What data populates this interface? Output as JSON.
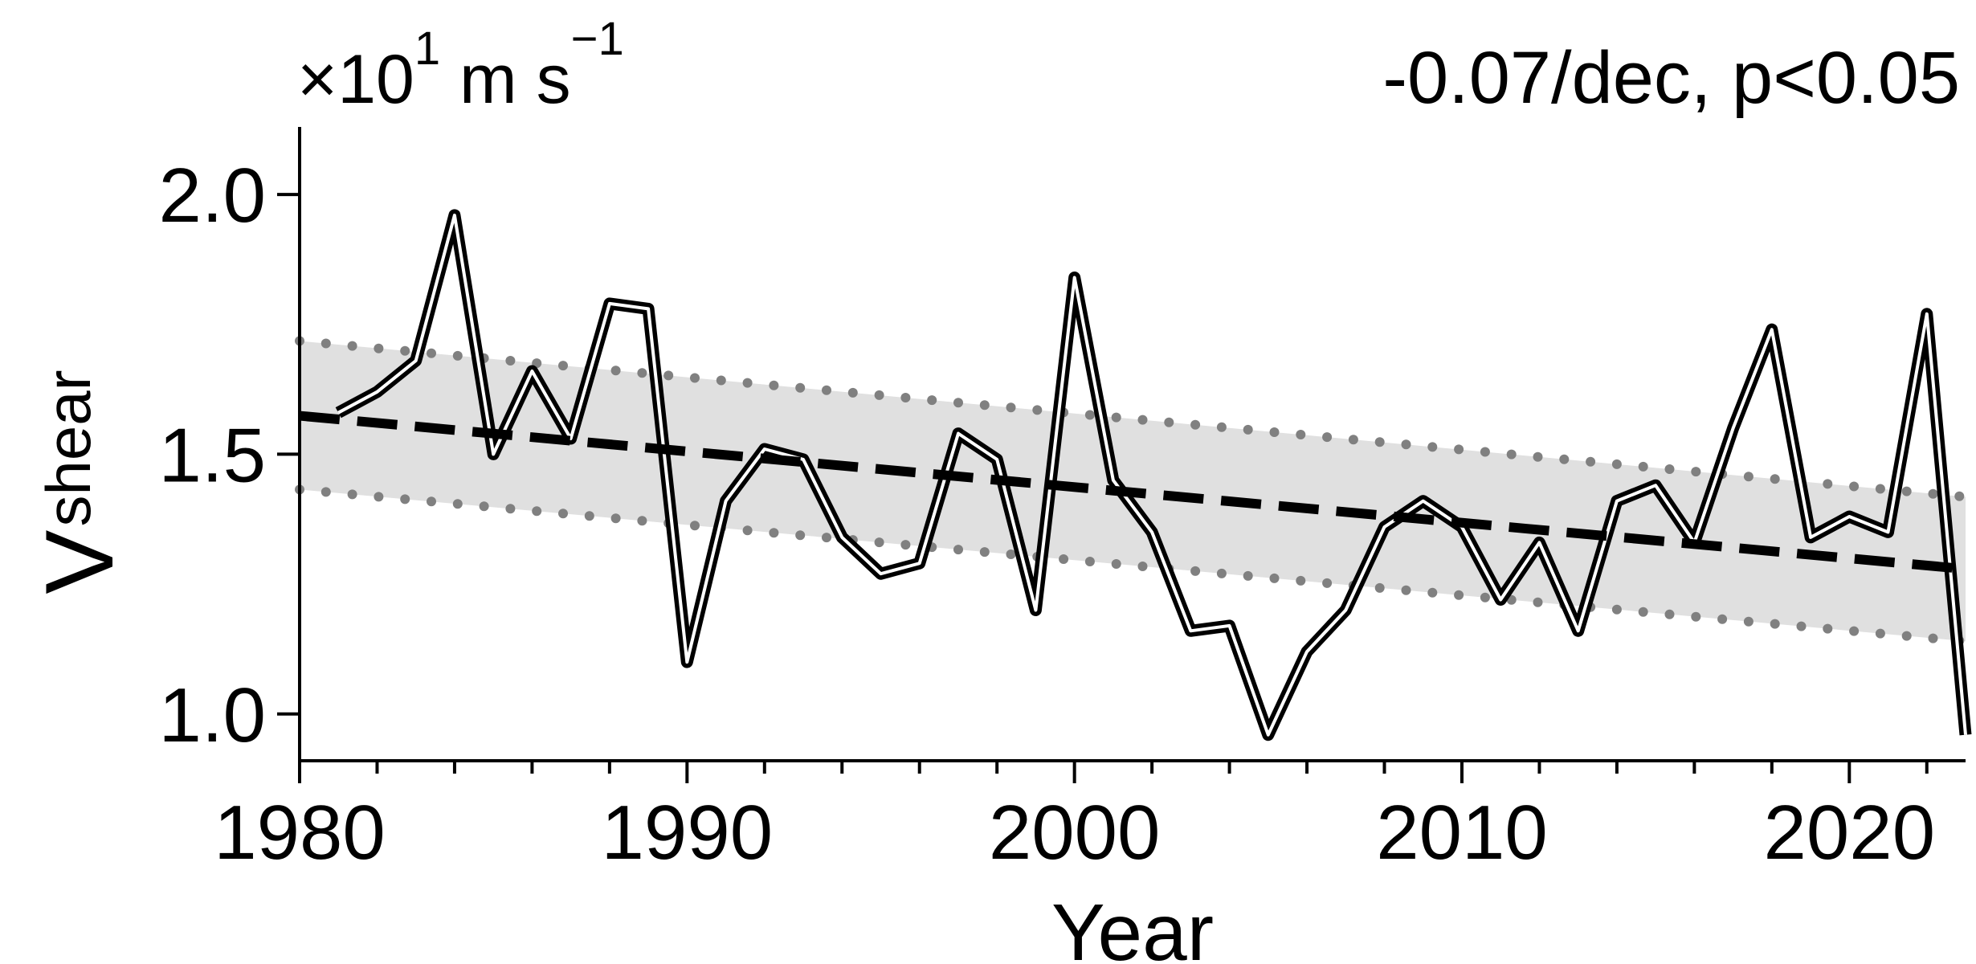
{
  "chart_data": {
    "type": "line",
    "title": "-0.07/dec, p<0.05",
    "units_prefix": "×10",
    "units_exp": "1",
    "units_main": " m s",
    "units_exp2": "−1",
    "ylabel_main": "V",
    "ylabel_sub": "shear",
    "xlabel": "Year",
    "xlim": [
      1980,
      2023
    ],
    "ylim": [
      0.91,
      2.13
    ],
    "xticks": [
      1980,
      1990,
      2000,
      2010,
      2020
    ],
    "xtick_labels": [
      "1980",
      "1990",
      "2000",
      "2010",
      "2020"
    ],
    "yticks": [
      1.0,
      1.5,
      2.0
    ],
    "ytick_labels": [
      "1.0",
      "1.5",
      "2.0"
    ],
    "grid": false,
    "legend": "none",
    "x": [
      1981,
      1982,
      1983,
      1984,
      1985,
      1986,
      1987,
      1988,
      1989,
      1990,
      1991,
      1992,
      1993,
      1994,
      1995,
      1996,
      1997,
      1998,
      1999,
      2000,
      2001,
      2002,
      2003,
      2004,
      2005,
      2006,
      2007,
      2008,
      2009,
      2010,
      2011,
      2012,
      2013,
      2014,
      2015,
      2016,
      2017,
      2018,
      2019,
      2020,
      2021,
      2022,
      2023
    ],
    "values": [
      1.58,
      1.62,
      1.68,
      1.96,
      1.5,
      1.66,
      1.53,
      1.79,
      1.78,
      1.1,
      1.41,
      1.51,
      1.49,
      1.34,
      1.27,
      1.29,
      1.54,
      1.49,
      1.2,
      1.84,
      1.45,
      1.35,
      1.16,
      1.17,
      0.96,
      1.12,
      1.2,
      1.36,
      1.41,
      1.36,
      1.22,
      1.33,
      1.16,
      1.41,
      1.44,
      1.33,
      1.55,
      1.74,
      1.34,
      1.38,
      1.35,
      1.77,
      0.96
    ],
    "trend": {
      "x": [
        1980,
        2023
      ],
      "y": [
        1.574,
        1.279
      ]
    },
    "band_upper": {
      "x": [
        1980,
        2023
      ],
      "y": [
        1.718,
        1.418
      ]
    },
    "band_lower": {
      "x": [
        1980,
        2023
      ],
      "y": [
        1.432,
        1.14
      ]
    },
    "colors": {
      "band": "#e0e0e0",
      "band_dots": "#808080",
      "line": "#000000",
      "line_inner": "#ffffff",
      "trend": "#000000"
    }
  }
}
